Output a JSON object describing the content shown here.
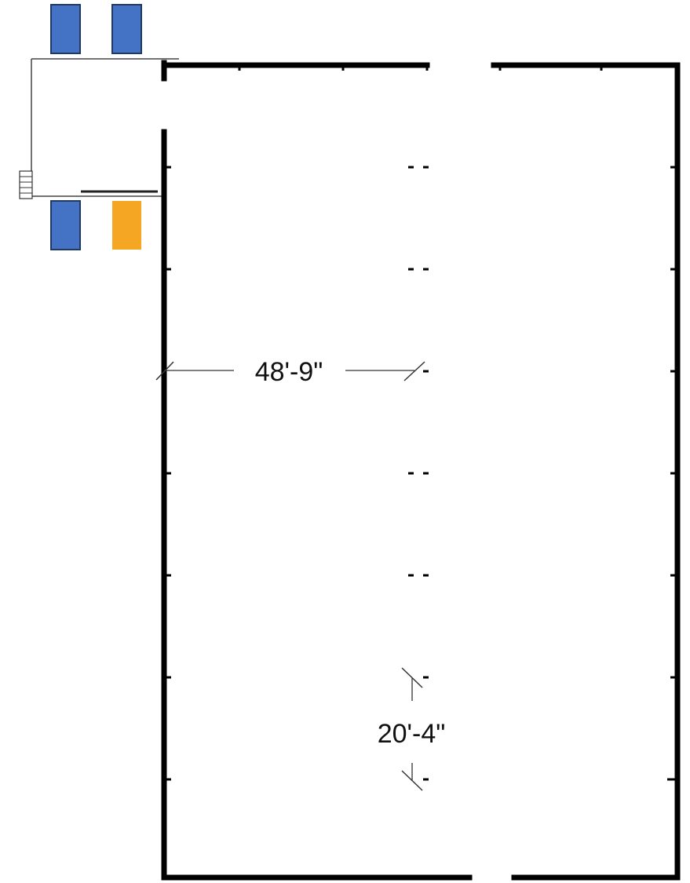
{
  "dimensions": {
    "width_label": "48'-9\"",
    "bay_label": "20'-4\""
  },
  "units": [
    {
      "id": "unit-1",
      "color": "#4472C4"
    },
    {
      "id": "unit-2",
      "color": "#4472C4"
    },
    {
      "id": "unit-3",
      "color": "#4472C4"
    },
    {
      "id": "unit-4",
      "color": "#F5A623"
    }
  ],
  "colors": {
    "wall": "#000000",
    "unit_border": "#1F3864"
  }
}
